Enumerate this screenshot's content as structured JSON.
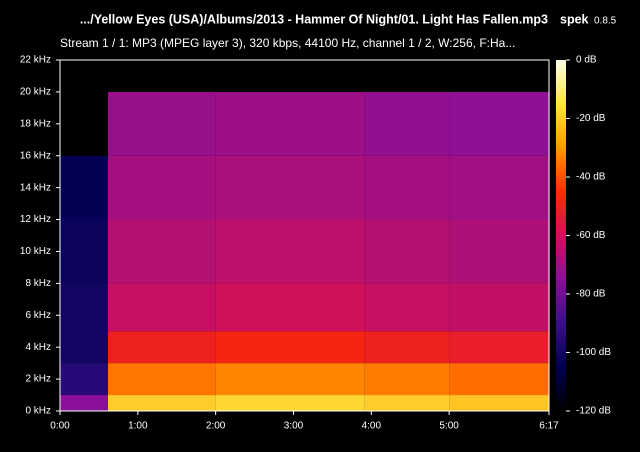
{
  "chart_data": {
    "type": "heatmap",
    "title": ".../Yellow Eyes (USA)/Albums/2013 - Hammer Of Night/01. Light Has Fallen.mp3",
    "app_name": "spek",
    "app_version": "0.8.5",
    "subtitle": "Stream 1 / 1: MP3 (MPEG layer 3), 320 kbps, 44100 Hz, channel 1 / 2, W:256, F:Ha...",
    "x_edges": [
      0,
      37,
      120,
      235,
      300,
      377
    ],
    "y_edges": [
      0,
      1,
      3,
      5,
      8,
      12,
      16,
      20,
      22
    ],
    "z": [
      [
        -75,
        -20,
        -18,
        -20,
        -22
      ],
      [
        -95,
        -35,
        -33,
        -34,
        -36
      ],
      [
        -100,
        -50,
        -48,
        -50,
        -52
      ],
      [
        -100,
        -62,
        -60,
        -62,
        -63
      ],
      [
        -102,
        -66,
        -64,
        -66,
        -67
      ],
      [
        -104,
        -69,
        -68,
        -69,
        -70
      ],
      [
        -120,
        -72,
        -71,
        -73,
        -74
      ],
      [
        -120,
        -120,
        -120,
        -120,
        -120
      ]
    ],
    "xlim": [
      0,
      377
    ],
    "xticks": [
      {
        "value": 0,
        "label": "0:00"
      },
      {
        "value": 60,
        "label": "1:00"
      },
      {
        "value": 120,
        "label": "2:00"
      },
      {
        "value": 180,
        "label": "3:00"
      },
      {
        "value": 240,
        "label": "4:00"
      },
      {
        "value": 300,
        "label": "5:00"
      },
      {
        "value": 377,
        "label": "6:17"
      }
    ],
    "ylim": [
      0,
      22
    ],
    "yticks": [
      {
        "value": 0,
        "label": "0 kHz"
      },
      {
        "value": 2,
        "label": "2 kHz"
      },
      {
        "value": 4,
        "label": "4 kHz"
      },
      {
        "value": 6,
        "label": "6 kHz"
      },
      {
        "value": 8,
        "label": "8 kHz"
      },
      {
        "value": 10,
        "label": "10 kHz"
      },
      {
        "value": 12,
        "label": "12 kHz"
      },
      {
        "value": 14,
        "label": "14 kHz"
      },
      {
        "value": 16,
        "label": "16 kHz"
      },
      {
        "value": 18,
        "label": "18 kHz"
      },
      {
        "value": 20,
        "label": "20 kHz"
      },
      {
        "value": 22,
        "label": "22 kHz"
      }
    ],
    "zlim": [
      -120,
      0
    ],
    "zticks": [
      {
        "value": 0,
        "label": "0 dB"
      },
      {
        "value": -20,
        "label": "-20 dB"
      },
      {
        "value": -40,
        "label": "-40 dB"
      },
      {
        "value": -60,
        "label": "-60 dB"
      },
      {
        "value": -80,
        "label": "-80 dB"
      },
      {
        "value": -100,
        "label": "-100 dB"
      },
      {
        "value": -120,
        "label": "-120 dB"
      }
    ],
    "colormap": [
      "#000000",
      "#000050",
      "#3a0f8a",
      "#8a0f99",
      "#d0105a",
      "#ff2a00",
      "#ff9a00",
      "#ffe640",
      "#ffffe8"
    ]
  }
}
